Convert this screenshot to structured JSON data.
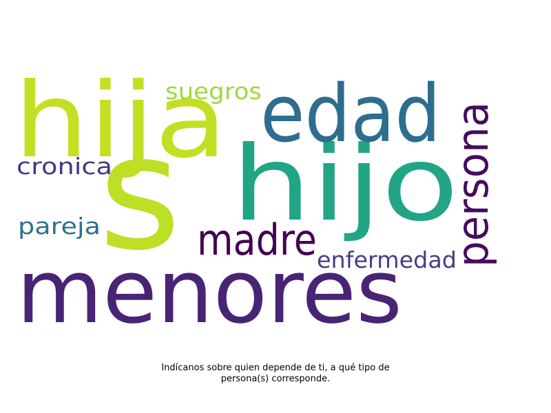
{
  "words": [
    {
      "text": "menores",
      "color": "#482475"
    },
    {
      "text": "s",
      "color": "#bddf26"
    },
    {
      "text": "hijo",
      "color": "#21a585"
    },
    {
      "text": "hija",
      "color": "#c2df23"
    },
    {
      "text": "edad",
      "color": "#2e6d8e"
    },
    {
      "text": "persona",
      "color": "#460b5e"
    },
    {
      "text": "madre",
      "color": "#440154"
    },
    {
      "text": "enfermedad",
      "color": "#433e85"
    },
    {
      "text": "suegros",
      "color": "#9dd93b"
    },
    {
      "text": "cronica",
      "color": "#453882"
    },
    {
      "text": "pareja",
      "color": "#2c728e"
    }
  ],
  "caption": {
    "line1": "Indícanos sobre quien depende de ti, a qué tipo de",
    "line2": "persona(s) corresponde."
  }
}
